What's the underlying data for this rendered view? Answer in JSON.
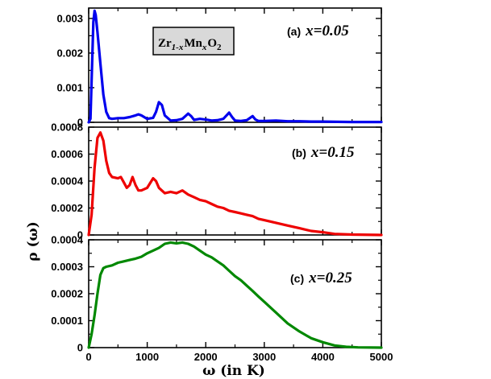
{
  "figure": {
    "ylabel": "ρ (ω)",
    "xlabel": "ω  (in K)",
    "formula": {
      "a": "Zr",
      "b": "1-x",
      "c": "Mn",
      "d": "x",
      "e": "O",
      "f": "2"
    }
  },
  "chart_data": [
    {
      "type": "line",
      "panel_label": "(a)",
      "panel_x": "x=0.05",
      "color": "#0000ee",
      "xlim": [
        0,
        5000
      ],
      "ylim": [
        0,
        0.0033
      ],
      "xticks": [
        0,
        1000,
        2000,
        3000,
        4000,
        5000
      ],
      "yticks": [
        0,
        0.001,
        0.002,
        0.003
      ],
      "ytick_labels": [
        "0",
        "0.001",
        "0.002",
        "0.003"
      ],
      "points": [
        [
          0,
          0
        ],
        [
          30,
          0.0001
        ],
        [
          50,
          0.0012
        ],
        [
          80,
          0.0029
        ],
        [
          100,
          0.00322
        ],
        [
          120,
          0.0031
        ],
        [
          150,
          0.0026
        ],
        [
          200,
          0.0017
        ],
        [
          250,
          0.0008
        ],
        [
          300,
          0.0003
        ],
        [
          350,
          0.00012
        ],
        [
          400,
          0.0001
        ],
        [
          500,
          0.00012
        ],
        [
          600,
          0.00012
        ],
        [
          700,
          0.00015
        ],
        [
          800,
          0.0002
        ],
        [
          850,
          0.00023
        ],
        [
          900,
          0.0002
        ],
        [
          1000,
          0.0001
        ],
        [
          1100,
          0.00013
        ],
        [
          1150,
          0.0003
        ],
        [
          1200,
          0.00058
        ],
        [
          1250,
          0.0005
        ],
        [
          1300,
          0.0002
        ],
        [
          1400,
          5e-05
        ],
        [
          1500,
          6e-05
        ],
        [
          1600,
          0.0001
        ],
        [
          1700,
          0.00025
        ],
        [
          1750,
          0.00018
        ],
        [
          1800,
          7e-05
        ],
        [
          1900,
          0.0001
        ],
        [
          2000,
          8e-05
        ],
        [
          2100,
          5e-05
        ],
        [
          2200,
          6e-05
        ],
        [
          2300,
          0.0001
        ],
        [
          2400,
          0.00028
        ],
        [
          2450,
          0.00015
        ],
        [
          2500,
          5e-05
        ],
        [
          2600,
          4e-05
        ],
        [
          2700,
          6e-05
        ],
        [
          2800,
          0.00018
        ],
        [
          2850,
          8e-05
        ],
        [
          2900,
          4e-05
        ],
        [
          3000,
          4e-05
        ],
        [
          3200,
          5e-05
        ],
        [
          3400,
          3e-05
        ],
        [
          3600,
          3e-05
        ],
        [
          3800,
          2e-05
        ],
        [
          4000,
          2e-05
        ],
        [
          4500,
          1e-05
        ],
        [
          5000,
          1e-05
        ]
      ]
    },
    {
      "type": "line",
      "panel_label": "(b)",
      "panel_x": "x=0.15",
      "color": "#ee0000",
      "xlim": [
        0,
        5000
      ],
      "ylim": [
        0,
        0.0008
      ],
      "xticks": [
        0,
        1000,
        2000,
        3000,
        4000,
        5000
      ],
      "yticks": [
        0,
        0.0002,
        0.0004,
        0.0006,
        0.0008
      ],
      "ytick_labels": [
        "0",
        "0.0002",
        "0.0004",
        "0.0006",
        "0.0008"
      ],
      "points": [
        [
          0,
          0
        ],
        [
          50,
          0.00015
        ],
        [
          100,
          0.0005
        ],
        [
          150,
          0.00072
        ],
        [
          200,
          0.00076
        ],
        [
          250,
          0.0007
        ],
        [
          300,
          0.00055
        ],
        [
          350,
          0.00046
        ],
        [
          400,
          0.00043
        ],
        [
          500,
          0.00042
        ],
        [
          550,
          0.00043
        ],
        [
          600,
          0.00039
        ],
        [
          650,
          0.00035
        ],
        [
          700,
          0.00037
        ],
        [
          750,
          0.00043
        ],
        [
          800,
          0.00037
        ],
        [
          850,
          0.00033
        ],
        [
          900,
          0.00033
        ],
        [
          1000,
          0.00035
        ],
        [
          1100,
          0.00042
        ],
        [
          1150,
          0.0004
        ],
        [
          1200,
          0.00035
        ],
        [
          1300,
          0.00031
        ],
        [
          1400,
          0.00032
        ],
        [
          1500,
          0.00031
        ],
        [
          1600,
          0.00033
        ],
        [
          1700,
          0.0003
        ],
        [
          1800,
          0.00028
        ],
        [
          1900,
          0.00026
        ],
        [
          2000,
          0.00025
        ],
        [
          2100,
          0.00023
        ],
        [
          2200,
          0.00021
        ],
        [
          2300,
          0.0002
        ],
        [
          2400,
          0.00018
        ],
        [
          2500,
          0.00017
        ],
        [
          2600,
          0.00016
        ],
        [
          2700,
          0.00015
        ],
        [
          2800,
          0.00014
        ],
        [
          2900,
          0.00012
        ],
        [
          3000,
          0.00011
        ],
        [
          3200,
          9e-05
        ],
        [
          3400,
          7e-05
        ],
        [
          3600,
          5e-05
        ],
        [
          3800,
          3e-05
        ],
        [
          4000,
          2e-05
        ],
        [
          4200,
          8e-06
        ],
        [
          4500,
          3e-06
        ],
        [
          5000,
          0
        ]
      ]
    },
    {
      "type": "line",
      "panel_label": "(c)",
      "panel_x": "x=0.25",
      "color": "#008800",
      "xlim": [
        0,
        5000
      ],
      "ylim": [
        0,
        0.0004
      ],
      "xticks": [
        0,
        1000,
        2000,
        3000,
        4000,
        5000
      ],
      "xtick_labels": [
        "0",
        "1000",
        "2000",
        "3000",
        "4000",
        "5000"
      ],
      "yticks": [
        0,
        0.0001,
        0.0002,
        0.0003,
        0.0004
      ],
      "ytick_labels": [
        "0",
        "0.0001",
        "0.0002",
        "0.0003",
        "0.0004"
      ],
      "points": [
        [
          0,
          0
        ],
        [
          50,
          5e-05
        ],
        [
          100,
          0.00012
        ],
        [
          150,
          0.0002
        ],
        [
          200,
          0.00027
        ],
        [
          250,
          0.000295
        ],
        [
          300,
          0.0003
        ],
        [
          400,
          0.000305
        ],
        [
          500,
          0.000315
        ],
        [
          600,
          0.00032
        ],
        [
          700,
          0.000325
        ],
        [
          800,
          0.00033
        ],
        [
          900,
          0.000337
        ],
        [
          1000,
          0.00035
        ],
        [
          1100,
          0.00036
        ],
        [
          1200,
          0.00037
        ],
        [
          1300,
          0.000385
        ],
        [
          1400,
          0.00039
        ],
        [
          1500,
          0.000387
        ],
        [
          1600,
          0.00039
        ],
        [
          1700,
          0.000385
        ],
        [
          1800,
          0.000375
        ],
        [
          1900,
          0.00036
        ],
        [
          2000,
          0.000345
        ],
        [
          2100,
          0.000335
        ],
        [
          2200,
          0.00032
        ],
        [
          2300,
          0.000305
        ],
        [
          2400,
          0.000285
        ],
        [
          2500,
          0.000265
        ],
        [
          2600,
          0.00025
        ],
        [
          2700,
          0.00023
        ],
        [
          2800,
          0.00021
        ],
        [
          2900,
          0.00019
        ],
        [
          3000,
          0.00017
        ],
        [
          3200,
          0.00013
        ],
        [
          3400,
          9e-05
        ],
        [
          3600,
          6e-05
        ],
        [
          3800,
          3.5e-05
        ],
        [
          4000,
          2e-05
        ],
        [
          4200,
          8e-06
        ],
        [
          4400,
          3e-06
        ],
        [
          4600,
          1e-06
        ],
        [
          5000,
          0
        ]
      ]
    }
  ]
}
